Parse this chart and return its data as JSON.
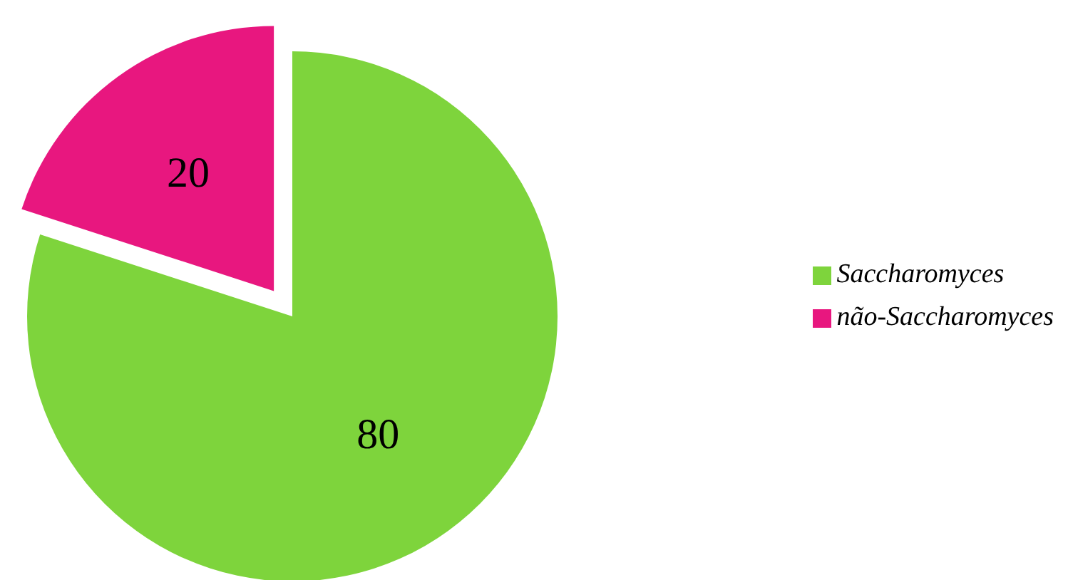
{
  "chart_data": {
    "type": "pie",
    "categories": [
      "Saccharomyces",
      "não-Saccharomyces"
    ],
    "values": [
      80,
      20
    ],
    "colors": [
      "#7ed43c",
      "#e8177f"
    ],
    "data_labels": true,
    "legend": "right"
  }
}
